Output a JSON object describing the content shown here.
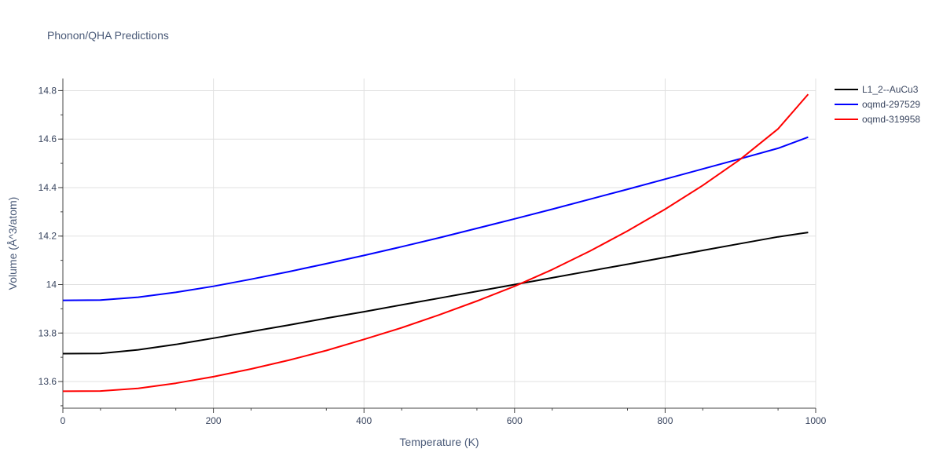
{
  "chart_data": {
    "type": "line",
    "title": "Phonon/QHA Predictions",
    "xlabel": "Temperature (K)",
    "ylabel": "Volume (Å^3/atom)",
    "xlim": [
      0,
      1000
    ],
    "ylim": [
      13.49,
      14.85
    ],
    "x_ticks": [
      "0",
      "200",
      "400",
      "600",
      "800",
      "1000"
    ],
    "y_ticks": [
      "13.6",
      "13.8",
      "14",
      "14.2",
      "14.4",
      "14.6",
      "14.8"
    ],
    "grid": true,
    "legend_position": "top-right",
    "series": [
      {
        "name": "L1_2--AuCu3",
        "color": "#000000",
        "x": [
          0,
          50,
          100,
          150,
          200,
          250,
          300,
          350,
          400,
          450,
          500,
          550,
          600,
          650,
          700,
          750,
          800,
          850,
          900,
          950,
          990
        ],
        "y": [
          13.715,
          13.716,
          13.731,
          13.753,
          13.779,
          13.806,
          13.833,
          13.861,
          13.888,
          13.916,
          13.944,
          13.972,
          14.0,
          14.028,
          14.056,
          14.084,
          14.112,
          14.141,
          14.169,
          14.197,
          14.215
        ]
      },
      {
        "name": "oqmd-297529",
        "color": "#0000ff",
        "x": [
          0,
          50,
          100,
          150,
          200,
          250,
          300,
          350,
          400,
          450,
          500,
          550,
          600,
          650,
          700,
          750,
          800,
          850,
          900,
          950,
          990
        ],
        "y": [
          13.935,
          13.936,
          13.948,
          13.968,
          13.993,
          14.022,
          14.053,
          14.086,
          14.12,
          14.156,
          14.193,
          14.232,
          14.271,
          14.311,
          14.352,
          14.393,
          14.435,
          14.477,
          14.519,
          14.562,
          14.608
        ]
      },
      {
        "name": "oqmd-319958",
        "color": "#ff0000",
        "x": [
          0,
          50,
          100,
          150,
          200,
          250,
          300,
          350,
          400,
          450,
          500,
          550,
          600,
          650,
          700,
          750,
          800,
          850,
          900,
          950,
          990
        ],
        "y": [
          13.56,
          13.561,
          13.572,
          13.593,
          13.62,
          13.652,
          13.688,
          13.728,
          13.774,
          13.822,
          13.875,
          13.932,
          13.993,
          14.062,
          14.138,
          14.221,
          14.311,
          14.409,
          14.517,
          14.642,
          14.785
        ]
      }
    ]
  }
}
